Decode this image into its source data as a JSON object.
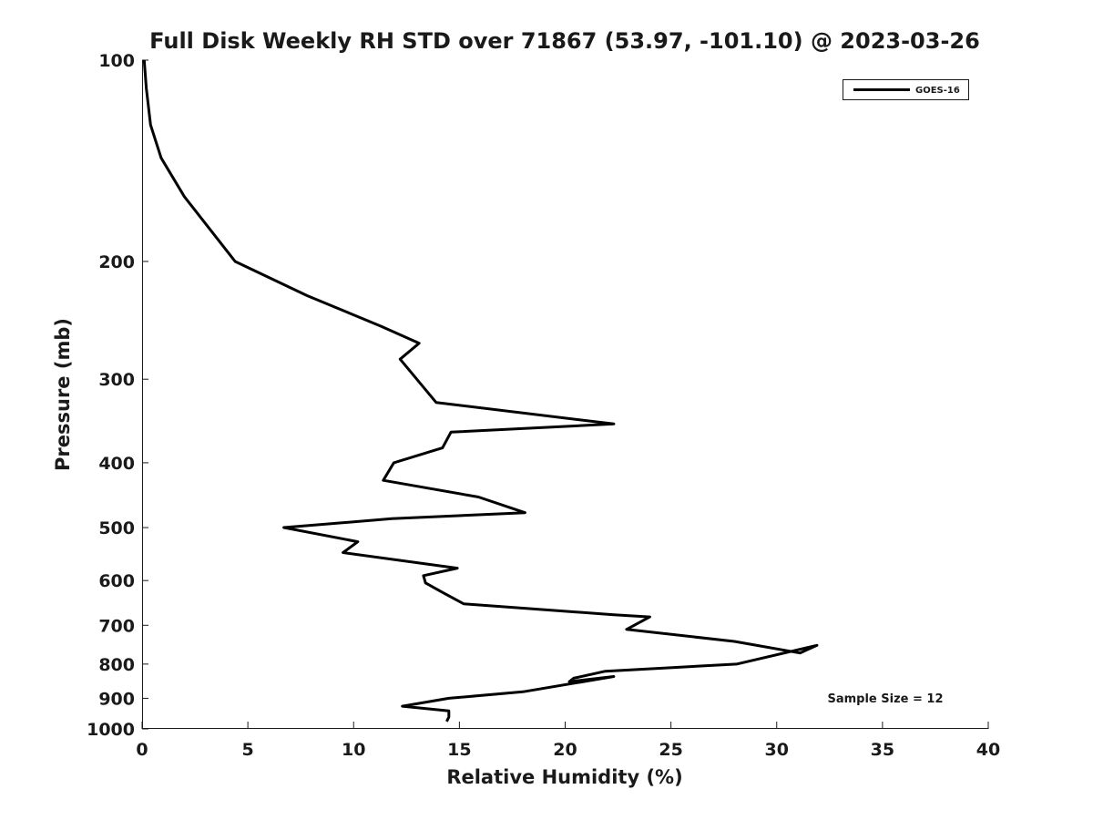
{
  "chart_data": {
    "type": "line",
    "title": "Full Disk Weekly RH STD over 71867 (53.97, -101.10) @ 2023-03-26",
    "xlabel": "Relative Humidity (%)",
    "ylabel": "Pressure (mb)",
    "xlim": [
      0,
      40
    ],
    "ylim": [
      100,
      1000
    ],
    "y_scale": "log",
    "y_reversed": true,
    "grid": false,
    "x_ticks": [
      "0",
      "5",
      "10",
      "15",
      "20",
      "25",
      "30",
      "35",
      "40"
    ],
    "y_ticks": [
      "100",
      "200",
      "300",
      "400",
      "500",
      "600",
      "700",
      "800",
      "900",
      "1000"
    ],
    "legend_position": "top-right",
    "series": [
      {
        "name": "GOES-16",
        "color": "#000000",
        "x": [
          0.1,
          0.2,
          0.4,
          0.9,
          2.0,
          4.4,
          7.8,
          11.3,
          13.1,
          12.2,
          13.9,
          22.3,
          14.6,
          14.2,
          11.9,
          11.4,
          15.9,
          18.1,
          11.8,
          6.7,
          10.2,
          9.5,
          14.9,
          13.3,
          13.4,
          14.2,
          15.2,
          22.3,
          24.0,
          22.9,
          28.0,
          31.1,
          31.9,
          28.1,
          21.9,
          20.4,
          20.2,
          22.3,
          18.0,
          14.5,
          12.3,
          14.5,
          14.5,
          14.4
        ],
        "y": [
          100,
          110,
          125,
          140,
          160,
          200,
          225,
          250,
          265,
          280,
          325,
          350,
          360,
          380,
          400,
          425,
          450,
          475,
          485,
          500,
          525,
          545,
          575,
          590,
          605,
          625,
          650,
          675,
          680,
          710,
          740,
          770,
          750,
          800,
          820,
          840,
          850,
          835,
          880,
          900,
          925,
          940,
          960,
          975
        ]
      }
    ],
    "annotation": "Sample Size = 12"
  }
}
